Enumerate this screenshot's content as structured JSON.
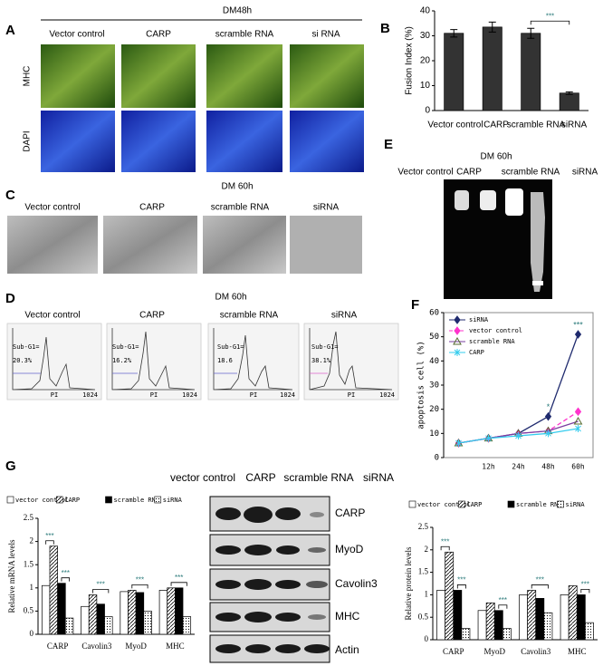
{
  "panel_a": {
    "letter": "A",
    "title": "DM48h",
    "columns": [
      "Vector control",
      "CARP",
      "scramble RNA",
      "si RNA"
    ],
    "rows": [
      "MHC",
      "DAPI"
    ]
  },
  "panel_c": {
    "letter": "C",
    "title": "DM 60h",
    "columns": [
      "Vector control",
      "CARP",
      "scramble RNA",
      "siRNA"
    ]
  },
  "panel_d": {
    "letter": "D",
    "title": "DM 60h",
    "columns": [
      "Vector control",
      "CARP",
      "scramble RNA",
      "siRNA"
    ],
    "subg1_label": "Sub-G1=",
    "subg1": [
      "20.3%",
      "16.2%",
      "18.6",
      "38.1%"
    ],
    "x_axis": "PI",
    "x_max": "1024"
  },
  "panel_e": {
    "letter": "E",
    "title": "DM 60h",
    "columns": [
      "Vector control",
      "CARP",
      "scramble RNA",
      "siRNA"
    ]
  },
  "panel_f": {
    "letter": "F"
  },
  "panel_b": {
    "letter": "B"
  },
  "panel_g": {
    "letter": "G",
    "blot_columns": [
      "vector control",
      "CARP",
      "scramble RNA",
      "siRNA"
    ],
    "blot_rows": [
      "CARP",
      "MyoD",
      "Cavolin3",
      "MHC",
      "Actin"
    ]
  },
  "chart_data": [
    {
      "type": "bar",
      "ylabel": "Fusion Index (%)",
      "categories": [
        "Vector control",
        "CARP",
        "scramble RNA",
        "siRNA"
      ],
      "values": [
        31,
        33.5,
        31,
        7
      ],
      "errors": [
        1.5,
        2,
        2,
        0.5
      ],
      "color": "#333333",
      "ylim": [
        0,
        40
      ],
      "yticks": [
        0,
        10,
        20,
        30,
        40
      ],
      "annotations": [
        {
          "text": "***",
          "categories": [
            2,
            3
          ]
        }
      ]
    },
    {
      "type": "line",
      "ylabel": "apoptosis cell (%)",
      "categories": [
        null,
        "12h",
        "24h",
        "48h",
        "60h"
      ],
      "ylim": [
        0,
        60
      ],
      "yticks": [
        0,
        10,
        20,
        30,
        40,
        50,
        60
      ],
      "legend": "top-left",
      "series": [
        {
          "name": "siRNA",
          "color": "#1f2a6e",
          "marker": "diamond",
          "dash": false,
          "values": [
            6,
            8,
            10,
            17,
            51
          ]
        },
        {
          "name": "vector control",
          "color": "#ff33cc",
          "marker": "diamond",
          "dash": true,
          "values": [
            6,
            8,
            10,
            11,
            19
          ]
        },
        {
          "name": "scramble RNA",
          "color": "#7a3fa0",
          "marker": "triangle",
          "dash": false,
          "values": [
            6,
            8,
            10,
            11,
            15
          ]
        },
        {
          "name": "CARP",
          "color": "#33ccee",
          "marker": "cross",
          "dash": false,
          "values": [
            6,
            8,
            9,
            10,
            12
          ]
        }
      ],
      "annotations": [
        {
          "text": "*",
          "category": 3,
          "series": 0
        },
        {
          "text": "***",
          "category": 4,
          "series": 0
        }
      ]
    },
    {
      "type": "bar",
      "ylabel": "Relative mRNA levels",
      "categories": [
        "CARP",
        "Cavolin3",
        "MyoD",
        "MHC"
      ],
      "ylim": [
        0,
        2.5
      ],
      "yticks": [
        0,
        0.5,
        1,
        1.5,
        2,
        2.5
      ],
      "legend": "top",
      "series": [
        {
          "name": "vector control",
          "color": "#ffffff",
          "pattern": "solid",
          "values": [
            1.05,
            0.6,
            0.92,
            0.95
          ]
        },
        {
          "name": "CARP",
          "color": "#000000",
          "pattern": "diagonal",
          "values": [
            1.9,
            0.85,
            0.95,
            1.0
          ]
        },
        {
          "name": "scramble RNA",
          "color": "#000000",
          "pattern": "solid",
          "values": [
            1.1,
            0.65,
            0.9,
            1.0
          ]
        },
        {
          "name": "siRNA",
          "color": "#000000",
          "pattern": "dotted",
          "values": [
            0.35,
            0.38,
            0.5,
            0.38
          ]
        }
      ],
      "annotations": [
        {
          "text": "***",
          "category": 0,
          "series": [
            0,
            1
          ]
        },
        {
          "text": "***",
          "category": 0,
          "series": [
            2,
            3
          ]
        },
        {
          "text": "***",
          "category": 1,
          "series": [
            1,
            3
          ]
        },
        {
          "text": "***",
          "category": 2,
          "series": [
            1,
            3
          ]
        },
        {
          "text": "***",
          "category": 3,
          "series": [
            1,
            3
          ]
        }
      ]
    },
    {
      "type": "bar",
      "ylabel": "Relative protein levels",
      "categories": [
        "CARP",
        "MyoD",
        "Cavolin3",
        "MHC"
      ],
      "ylim": [
        0,
        2.5
      ],
      "yticks": [
        0,
        0.5,
        1,
        1.5,
        2,
        2.5
      ],
      "legend": "top",
      "series": [
        {
          "name": "vector control",
          "color": "#ffffff",
          "pattern": "solid",
          "values": [
            1.1,
            0.65,
            1.0,
            1.0
          ]
        },
        {
          "name": "CARP",
          "color": "#000000",
          "pattern": "diagonal",
          "values": [
            1.95,
            0.82,
            1.1,
            1.2
          ]
        },
        {
          "name": "scramble RNA",
          "color": "#000000",
          "pattern": "solid",
          "values": [
            1.1,
            0.65,
            0.92,
            1.0
          ]
        },
        {
          "name": "siRNA",
          "color": "#000000",
          "pattern": "dotted",
          "values": [
            0.25,
            0.25,
            0.6,
            0.38
          ]
        }
      ],
      "annotations": [
        {
          "text": "***",
          "category": 0,
          "series": [
            0,
            1
          ]
        },
        {
          "text": "***",
          "category": 0,
          "series": [
            2,
            3
          ]
        },
        {
          "text": "***",
          "category": 1,
          "series": [
            2,
            3
          ]
        },
        {
          "text": "***",
          "category": 2,
          "series": [
            1,
            3
          ]
        },
        {
          "text": "***",
          "category": 3,
          "series": [
            2,
            3
          ]
        }
      ]
    }
  ]
}
